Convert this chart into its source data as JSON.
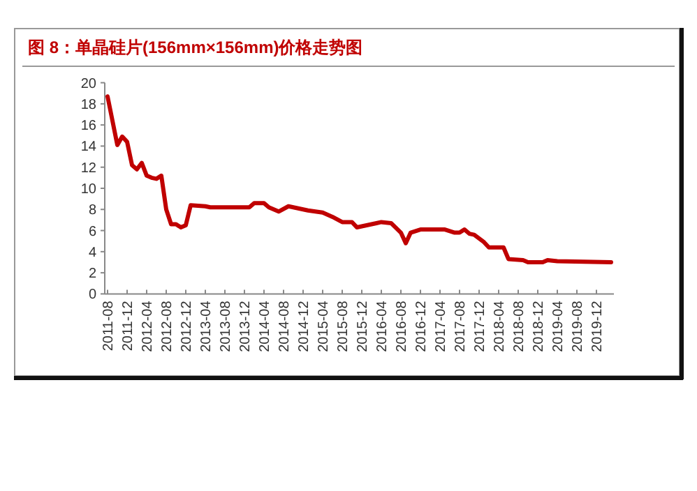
{
  "chart_data": {
    "type": "line",
    "title": "图 8：单晶硅片(156mm×156mm)价格走势图",
    "series": [
      {
        "color": "#c00000",
        "x": [
          "2011-08",
          "2011-10",
          "2011-11",
          "2011-12",
          "2012-01",
          "2012-02",
          "2012-03",
          "2012-04",
          "2012-05",
          "2012-06",
          "2012-07",
          "2012-08",
          "2012-09",
          "2012-10",
          "2012-11",
          "2012-12",
          "2013-01",
          "2013-04",
          "2013-05",
          "2014-01",
          "2014-02",
          "2014-04",
          "2014-05",
          "2014-07",
          "2014-09",
          "2015-01",
          "2015-04",
          "2015-06",
          "2015-08",
          "2015-10",
          "2015-11",
          "2016-01",
          "2016-03",
          "2016-04",
          "2016-06",
          "2016-08",
          "2016-09",
          "2016-10",
          "2016-12",
          "2017-05",
          "2017-07",
          "2017-08",
          "2017-09",
          "2017-10",
          "2017-11",
          "2018-01",
          "2018-02",
          "2018-05",
          "2018-06",
          "2018-09",
          "2018-10",
          "2019-01",
          "2019-02",
          "2019-04",
          "2020-03"
        ],
        "values": [
          18.7,
          14.1,
          14.9,
          14.4,
          12.2,
          11.8,
          12.4,
          11.2,
          11.0,
          10.9,
          11.2,
          8.0,
          6.6,
          6.6,
          6.3,
          6.5,
          8.4,
          8.3,
          8.2,
          8.2,
          8.6,
          8.6,
          8.2,
          7.8,
          8.3,
          7.9,
          7.7,
          7.3,
          6.8,
          6.8,
          6.3,
          6.5,
          6.7,
          6.8,
          6.7,
          5.8,
          4.8,
          5.8,
          6.1,
          6.1,
          5.8,
          5.8,
          6.1,
          5.7,
          5.6,
          4.9,
          4.4,
          4.4,
          3.3,
          3.2,
          3.0,
          3.0,
          3.2,
          3.1,
          3.0
        ]
      }
    ],
    "xlim": [
      "2011-08",
      "2020-03"
    ],
    "xticks": [
      "2011-08",
      "2011-12",
      "2012-04",
      "2012-08",
      "2012-12",
      "2013-04",
      "2013-08",
      "2013-12",
      "2014-04",
      "2014-08",
      "2014-12",
      "2015-04",
      "2015-08",
      "2015-12",
      "2016-04",
      "2016-08",
      "2016-12",
      "2017-04",
      "2017-08",
      "2017-12",
      "2018-04",
      "2018-08",
      "2018-12",
      "2019-04",
      "2019-08",
      "2019-12"
    ],
    "ylim": [
      0,
      20
    ],
    "yticks": [
      0,
      2,
      4,
      6,
      8,
      10,
      12,
      14,
      16,
      18,
      20
    ],
    "grid": false,
    "marker": "none",
    "line_style": "solid"
  }
}
